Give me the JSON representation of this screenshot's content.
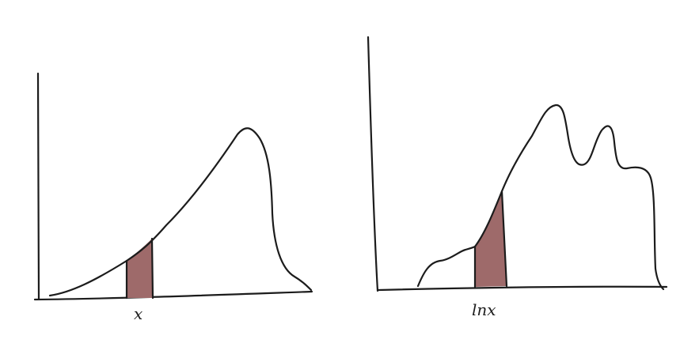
{
  "panels": [
    {
      "id": "left",
      "axis_label": "x",
      "shaded_color": "#9e6a6a"
    },
    {
      "id": "right",
      "axis_label": "lnx",
      "shaded_color": "#9e6a6a"
    }
  ]
}
